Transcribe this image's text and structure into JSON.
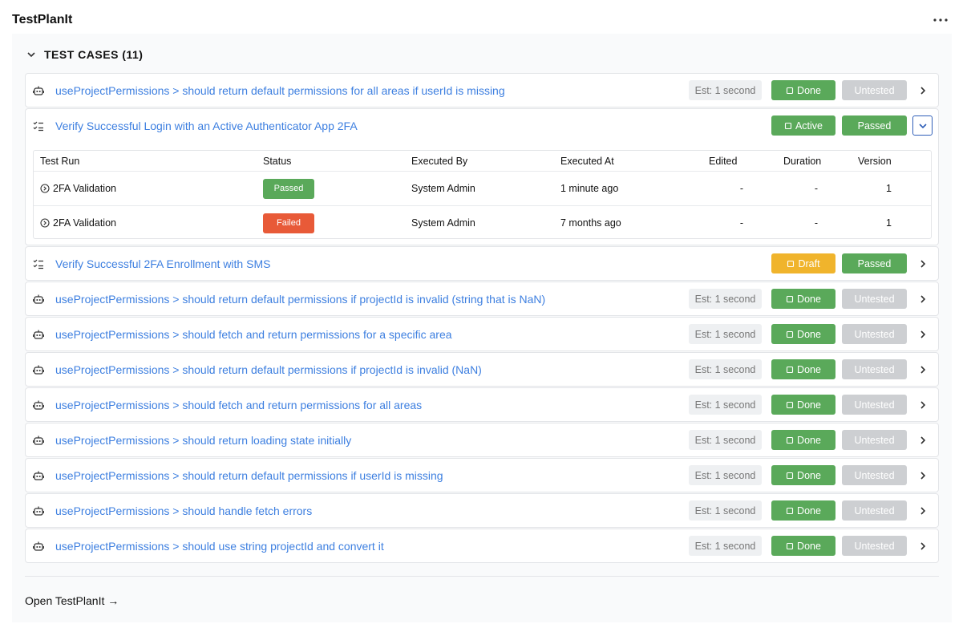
{
  "header": {
    "title": "TestPlanIt"
  },
  "section": {
    "title": "TEST CASES (11)"
  },
  "cases": [
    {
      "name": "useProjectPermissions > should return default permissions for all areas if userId is missing",
      "estimate": "Est: 1 second",
      "state": {
        "label": "Done",
        "color": "#5aa95a"
      },
      "status": {
        "label": "Untested",
        "color": "#cdcfd2"
      }
    },
    {
      "name": "Verify Successful Login with an Active Authenticator App 2FA",
      "state": {
        "label": "Active",
        "color": "#5aa95a"
      },
      "status": {
        "label": "Passed",
        "color": "#5aa95a"
      },
      "runs": {
        "columns": [
          "Test Run",
          "Status",
          "Executed By",
          "Executed At",
          "Edited",
          "Duration",
          "Version"
        ],
        "rows": [
          {
            "test_run": "2FA Validation",
            "status": {
              "label": "Passed",
              "color": "#5aa95a"
            },
            "executed_by": "System Admin",
            "executed_at": "1 minute ago",
            "edited": "-",
            "duration": "-",
            "version": 1
          },
          {
            "test_run": "2FA Validation",
            "status": {
              "label": "Failed",
              "color": "#e85a38"
            },
            "executed_by": "System Admin",
            "executed_at": "7 months ago",
            "edited": "-",
            "duration": "-",
            "version": 1
          }
        ]
      }
    },
    {
      "name": "Verify Successful 2FA Enrollment with SMS",
      "state": {
        "label": "Draft",
        "color": "#f0b42c"
      },
      "status": {
        "label": "Passed",
        "color": "#5aa95a"
      }
    },
    {
      "name": "useProjectPermissions > should return default permissions if projectId is invalid (string that is NaN)",
      "estimate": "Est: 1 second",
      "state": {
        "label": "Done",
        "color": "#5aa95a"
      },
      "status": {
        "label": "Untested",
        "color": "#cdcfd2"
      }
    },
    {
      "name": "useProjectPermissions > should fetch and return permissions for a specific area",
      "estimate": "Est: 1 second",
      "state": {
        "label": "Done",
        "color": "#5aa95a"
      },
      "status": {
        "label": "Untested",
        "color": "#cdcfd2"
      }
    },
    {
      "name": "useProjectPermissions > should return default permissions if projectId is invalid (NaN)",
      "estimate": "Est: 1 second",
      "state": {
        "label": "Done",
        "color": "#5aa95a"
      },
      "status": {
        "label": "Untested",
        "color": "#cdcfd2"
      }
    },
    {
      "name": "useProjectPermissions > should fetch and return permissions for all areas",
      "estimate": "Est: 1 second",
      "state": {
        "label": "Done",
        "color": "#5aa95a"
      },
      "status": {
        "label": "Untested",
        "color": "#cdcfd2"
      }
    },
    {
      "name": "useProjectPermissions > should return loading state initially",
      "estimate": "Est: 1 second",
      "state": {
        "label": "Done",
        "color": "#5aa95a"
      },
      "status": {
        "label": "Untested",
        "color": "#cdcfd2"
      }
    },
    {
      "name": "useProjectPermissions > should return default permissions if userId is missing",
      "estimate": "Est: 1 second",
      "state": {
        "label": "Done",
        "color": "#5aa95a"
      },
      "status": {
        "label": "Untested",
        "color": "#cdcfd2"
      }
    },
    {
      "name": "useProjectPermissions > should handle fetch errors",
      "estimate": "Est: 1 second",
      "state": {
        "label": "Done",
        "color": "#5aa95a"
      },
      "status": {
        "label": "Untested",
        "color": "#cdcfd2"
      }
    },
    {
      "name": "useProjectPermissions > should use string projectId and convert it",
      "estimate": "Est: 1 second",
      "state": {
        "label": "Done",
        "color": "#5aa95a"
      },
      "status": {
        "label": "Untested",
        "color": "#cdcfd2"
      }
    }
  ],
  "footer": {
    "link": "Open TestPlanIt →"
  }
}
